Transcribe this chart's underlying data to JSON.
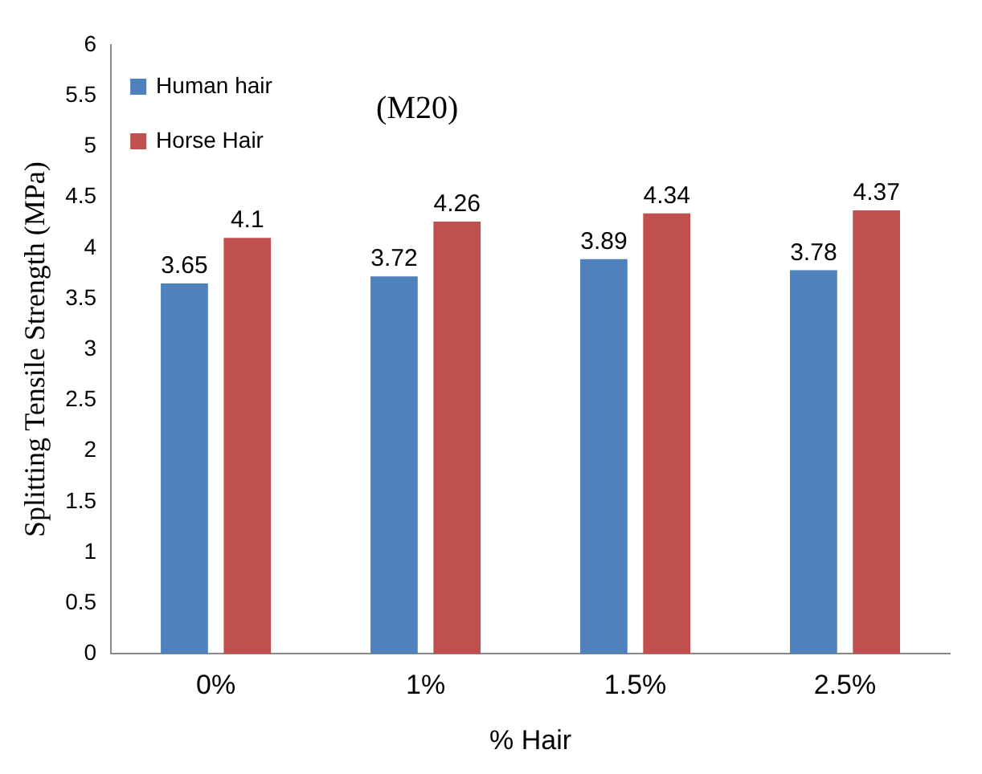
{
  "chart_data": {
    "type": "bar",
    "xlabel": "% Hair",
    "ylabel": "Splitting Tensile Strength (MPa)",
    "categories": [
      "0%",
      "1%",
      "1.5%",
      "2.5%"
    ],
    "series": [
      {
        "name": "Human hair",
        "color": "#4f81bd",
        "values": [
          3.65,
          3.72,
          3.89,
          3.78
        ]
      },
      {
        "name": "Horse Hair",
        "color": "#c0504d",
        "values": [
          4.1,
          4.26,
          4.34,
          4.37
        ]
      }
    ],
    "ylim": [
      0,
      6
    ],
    "yticks": [
      0,
      0.5,
      1,
      1.5,
      2,
      2.5,
      3,
      3.5,
      4,
      4.5,
      5,
      5.5,
      6
    ],
    "grid": false,
    "legend": "top left",
    "data_labels": true,
    "annotations": [
      "(M20)"
    ]
  }
}
